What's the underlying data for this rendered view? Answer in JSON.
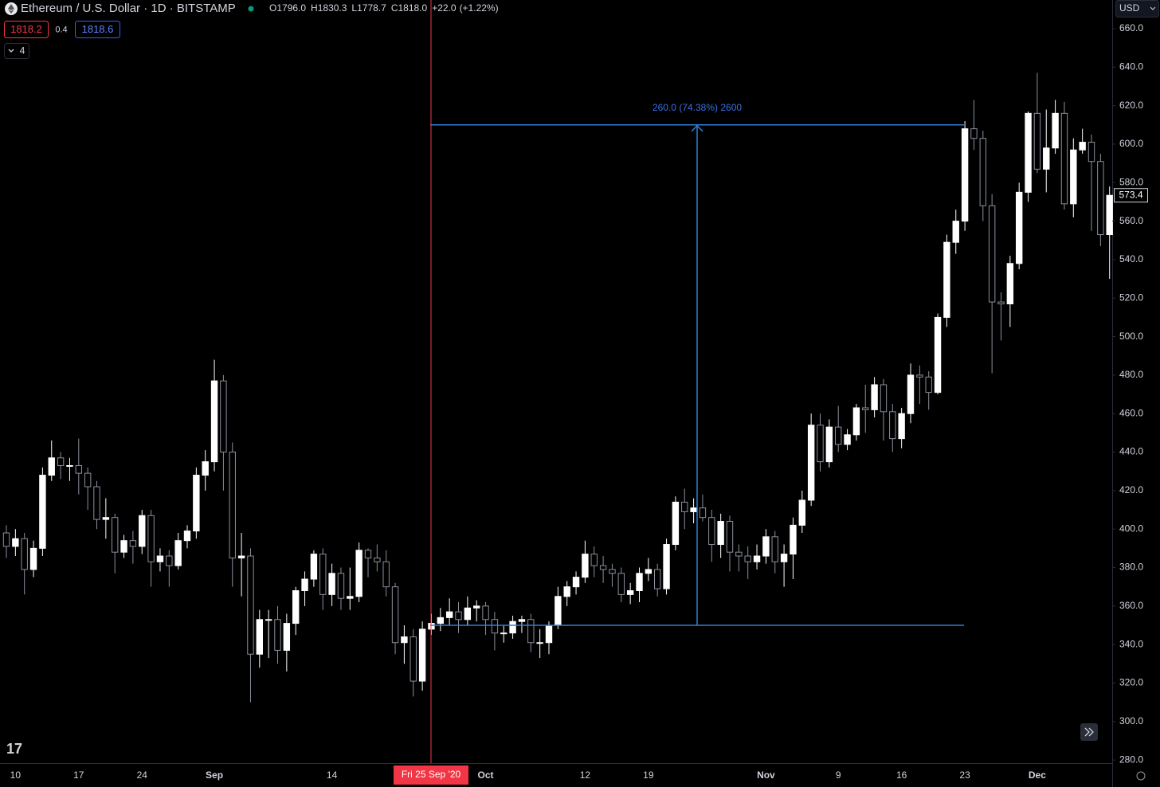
{
  "chart_data": {
    "type": "candlestick",
    "title": "Ethereum / U.S. Dollar · 1D · BITSTAMP",
    "legend": [
      {
        "key": "O",
        "value": "1796.0"
      },
      {
        "key": "H",
        "value": "1830.3"
      },
      {
        "key": "L",
        "value": "1778.7"
      },
      {
        "key": "C",
        "value": "1818.0"
      },
      {
        "key": "+22.0",
        "value": "(+1.22%)"
      }
    ],
    "badges": {
      "bid": "1818.2",
      "spread": "0.4",
      "ask": "1818.6",
      "indicators": "4"
    },
    "currency": "USD",
    "crosshair": {
      "label": "Fri 25 Sep '20"
    },
    "measure": {
      "label": "260.0 (74.38%) 2600",
      "from": 350,
      "to": 610,
      "color": "#2f7fd6"
    },
    "up_color": "#ffffff",
    "down_color": "#000000",
    "down_border": "#8a8f9c",
    "ylim": [
      278.4,
      674.9
    ],
    "yticks": [
      {
        "value": 280,
        "label": "280.0"
      },
      {
        "value": 300,
        "label": "300.0"
      },
      {
        "value": 320,
        "label": "320.0"
      },
      {
        "value": 340,
        "label": "340.0"
      },
      {
        "value": 360,
        "label": "360.0"
      },
      {
        "value": 380,
        "label": "380.0"
      },
      {
        "value": 400,
        "label": "400.0"
      },
      {
        "value": 420,
        "label": "420.0"
      },
      {
        "value": 440,
        "label": "440.0"
      },
      {
        "value": 460,
        "label": "460.0"
      },
      {
        "value": 480,
        "label": "480.0"
      },
      {
        "value": 500,
        "label": "500.0"
      },
      {
        "value": 520,
        "label": "520.0"
      },
      {
        "value": 540,
        "label": "540.0"
      },
      {
        "value": 560,
        "label": "560.0"
      },
      {
        "value": 580,
        "label": "580.0"
      },
      {
        "value": 600,
        "label": "600.0"
      },
      {
        "value": 620,
        "label": "620.0"
      },
      {
        "value": 640,
        "label": "640.0"
      },
      {
        "value": 660,
        "label": "660.0"
      }
    ],
    "last_price_label": "573.4",
    "categories": [
      null,
      "10",
      null,
      null,
      null,
      null,
      null,
      null,
      "17",
      null,
      null,
      null,
      null,
      null,
      null,
      "24",
      null,
      null,
      null,
      null,
      null,
      null,
      null,
      "Sep",
      null,
      null,
      null,
      null,
      null,
      null,
      null,
      null,
      null,
      null,
      null,
      null,
      "14",
      null,
      null,
      null,
      null,
      null,
      null,
      null,
      null,
      null,
      null,
      null,
      null,
      null,
      null,
      null,
      null,
      "Oct",
      null,
      null,
      null,
      null,
      null,
      null,
      null,
      null,
      null,
      null,
      "12",
      null,
      null,
      null,
      null,
      null,
      null,
      "19",
      null,
      null,
      null,
      null,
      null,
      null,
      null,
      null,
      null,
      null,
      null,
      null,
      "Nov",
      null,
      null,
      null,
      null,
      null,
      null,
      null,
      "9",
      null,
      null,
      null,
      null,
      null,
      null,
      "16",
      null,
      null,
      null,
      null,
      null,
      null,
      "23",
      null,
      null,
      null,
      null,
      null,
      null,
      null,
      "Dec",
      null,
      null,
      null,
      null,
      null,
      null,
      null,
      null
    ],
    "open": [
      398,
      391,
      395,
      379,
      390,
      428,
      437,
      433,
      433,
      429,
      422,
      405,
      406,
      388,
      394,
      391,
      407,
      383,
      386,
      381,
      394,
      399,
      428,
      435,
      477,
      440,
      385,
      386,
      335,
      353,
      353,
      337,
      351,
      368,
      374,
      387,
      366,
      377,
      364,
      365,
      389,
      385,
      383,
      370,
      341,
      344,
      321,
      348,
      351,
      354,
      357,
      353,
      359,
      360,
      353,
      346,
      346,
      352,
      353,
      341,
      341,
      350,
      365,
      370,
      375,
      387,
      381,
      379,
      377,
      366,
      368,
      377,
      379,
      369,
      392,
      414,
      409,
      411,
      406,
      392,
      404,
      388,
      386,
      383,
      386,
      396,
      383,
      387,
      402,
      415,
      454,
      435,
      453,
      444,
      449,
      463,
      462,
      475,
      461,
      447,
      460,
      480,
      479,
      471,
      510,
      549,
      560,
      608,
      603,
      568,
      518,
      517,
      538,
      575,
      616,
      587,
      598,
      616,
      569,
      597,
      601,
      591,
      553
    ],
    "high": [
      402,
      400,
      398,
      394,
      432,
      446,
      440,
      437,
      447,
      432,
      425,
      416,
      408,
      397,
      399,
      410,
      410,
      390,
      389,
      398,
      402,
      432,
      441,
      488,
      480,
      445,
      398,
      390,
      358,
      358,
      360,
      356,
      370,
      378,
      389,
      390,
      382,
      380,
      380,
      393,
      390,
      392,
      389,
      372,
      350,
      348,
      352,
      356,
      359,
      364,
      362,
      365,
      363,
      362,
      357,
      350,
      355,
      355,
      356,
      348,
      352,
      370,
      373,
      378,
      394,
      391,
      386,
      382,
      380,
      372,
      380,
      385,
      382,
      395,
      417,
      421,
      416,
      418,
      410,
      408,
      407,
      392,
      391,
      392,
      400,
      399,
      392,
      406,
      420,
      460,
      460,
      457,
      464,
      452,
      465,
      475,
      479,
      478,
      465,
      463,
      486,
      485,
      482,
      512,
      553,
      566,
      612,
      623,
      607,
      574,
      523,
      542,
      580,
      617,
      637,
      618,
      623,
      622,
      603,
      608,
      605,
      595,
      578
    ],
    "low": [
      385,
      386,
      366,
      375,
      386,
      425,
      426,
      425,
      418,
      410,
      400,
      395,
      377,
      385,
      382,
      387,
      370,
      378,
      370,
      379,
      390,
      395,
      420,
      430,
      420,
      370,
      365,
      310,
      328,
      333,
      330,
      326,
      345,
      360,
      370,
      358,
      360,
      358,
      358,
      362,
      375,
      378,
      365,
      335,
      330,
      313,
      316,
      345,
      347,
      350,
      346,
      350,
      352,
      345,
      337,
      341,
      343,
      346,
      336,
      333,
      335,
      348,
      360,
      366,
      372,
      375,
      372,
      370,
      362,
      361,
      362,
      373,
      365,
      366,
      389,
      400,
      403,
      404,
      383,
      385,
      378,
      378,
      374,
      379,
      382,
      377,
      370,
      374,
      398,
      412,
      430,
      432,
      440,
      441,
      446,
      450,
      458,
      446,
      440,
      442,
      455,
      465,
      462,
      470,
      505,
      543,
      555,
      597,
      560,
      481,
      498,
      505,
      535,
      570,
      585,
      575,
      595,
      566,
      562,
      595,
      555,
      547,
      530
    ],
    "close": [
      391,
      395,
      379,
      390,
      428,
      437,
      433,
      433,
      429,
      422,
      405,
      406,
      388,
      394,
      391,
      407,
      383,
      386,
      381,
      394,
      399,
      428,
      435,
      477,
      440,
      385,
      386,
      335,
      353,
      353,
      337,
      351,
      368,
      374,
      387,
      366,
      377,
      364,
      365,
      389,
      385,
      383,
      370,
      341,
      344,
      321,
      348,
      351,
      354,
      357,
      353,
      359,
      360,
      353,
      346,
      346,
      352,
      353,
      341,
      341,
      350,
      365,
      370,
      375,
      387,
      381,
      379,
      377,
      366,
      368,
      377,
      379,
      369,
      392,
      414,
      409,
      411,
      406,
      392,
      404,
      388,
      386,
      383,
      386,
      396,
      383,
      387,
      402,
      415,
      454,
      435,
      453,
      444,
      449,
      463,
      462,
      475,
      461,
      447,
      460,
      480,
      479,
      471,
      510,
      549,
      560,
      608,
      603,
      568,
      518,
      517,
      538,
      575,
      616,
      587,
      598,
      616,
      569,
      597,
      601,
      591,
      553,
      573.4
    ]
  }
}
